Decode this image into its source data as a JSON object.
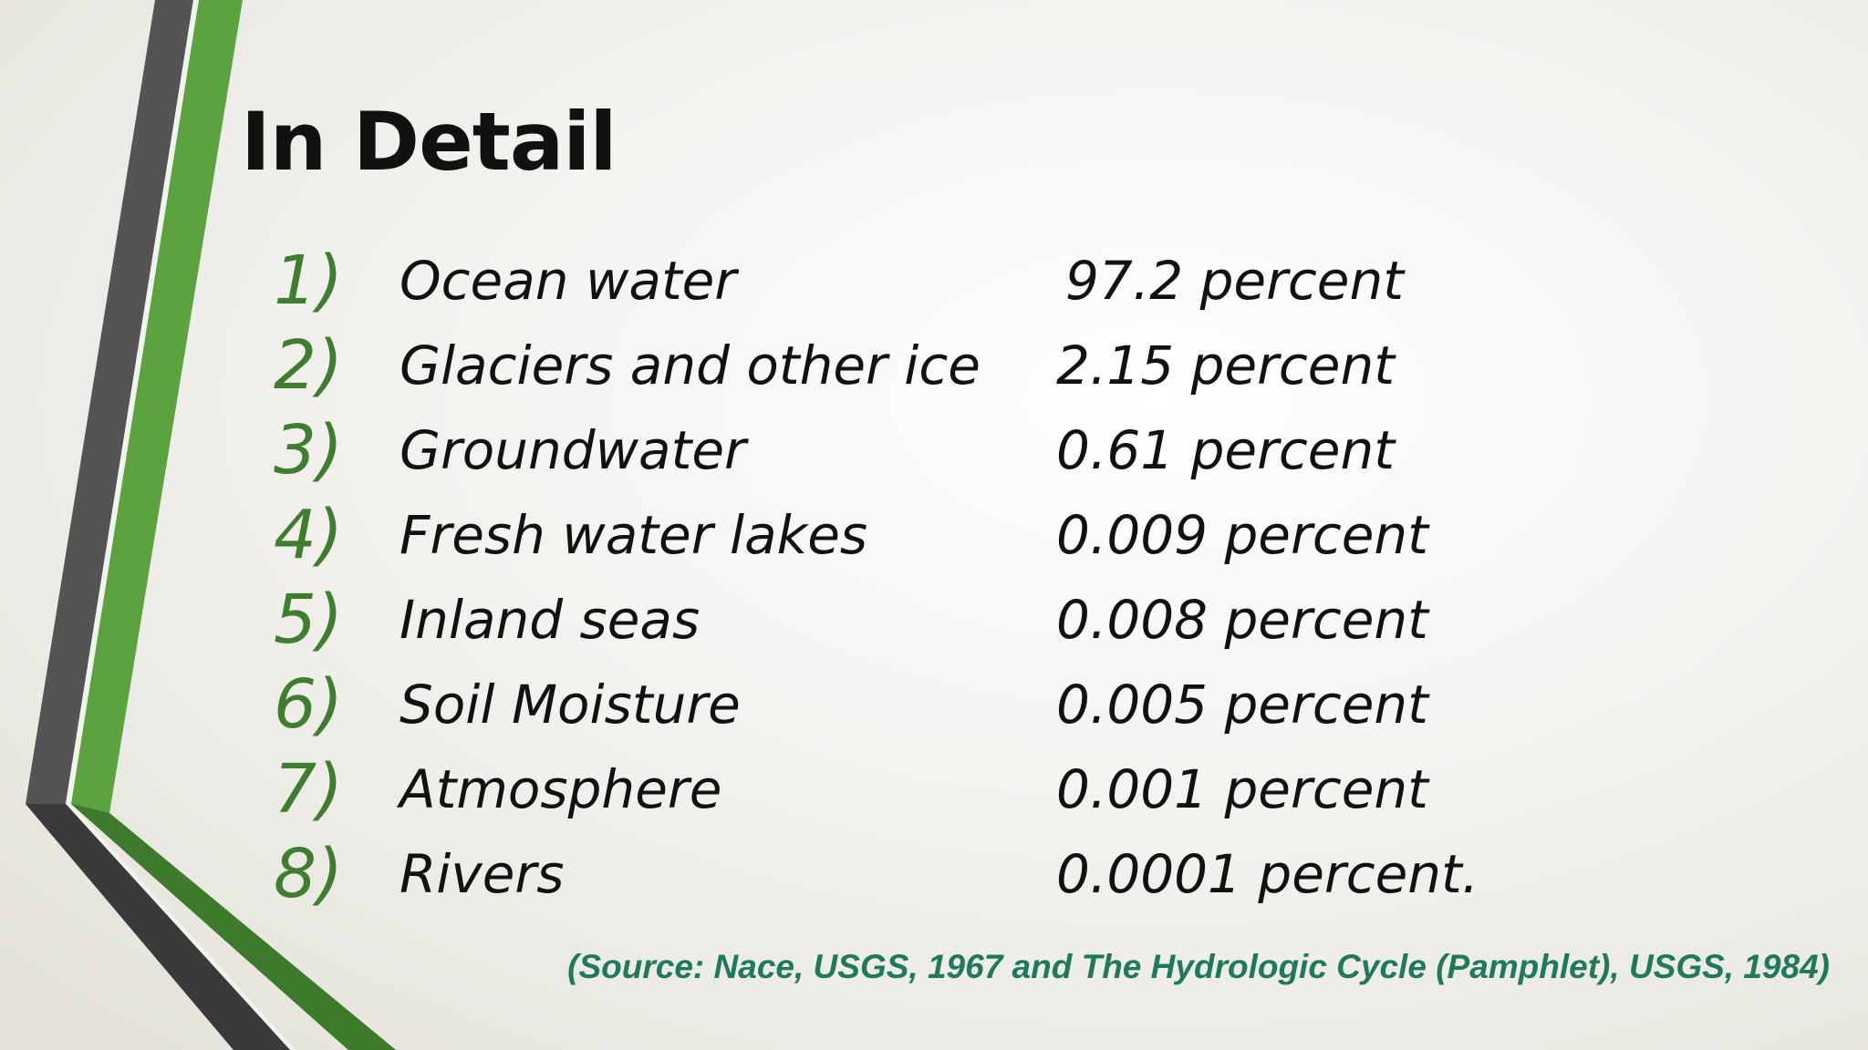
{
  "slide": {
    "title": "In Detail",
    "items": [
      {
        "number": "1)",
        "label": "Ocean water",
        "value": "97.2 percent"
      },
      {
        "number": "2)",
        "label": "Glaciers and other ice",
        "value": "2.15 percent"
      },
      {
        "number": "3)",
        "label": "Groundwater",
        "value": "0.61 percent"
      },
      {
        "number": "4)",
        "label": "Fresh water lakes",
        "value": "0.009 percent"
      },
      {
        "number": "5)",
        "label": "Inland seas",
        "value": "0.008 percent"
      },
      {
        "number": "6)",
        "label": "Soil Moisture",
        "value": "0.005 percent"
      },
      {
        "number": "7)",
        "label": "Atmosphere",
        "value": "0.001 percent"
      },
      {
        "number": "8)",
        "label": "Rivers",
        "value": "0.0001 percent."
      }
    ],
    "source": "(Source: Nace, USGS, 1967 and The Hydrologic Cycle (Pamphlet), USGS, 1984)"
  },
  "theme": {
    "accent_green": "#5aa33f",
    "dark_green": "#3f7d2f",
    "stripe_gray": "#505050",
    "source_color": "#1f7a5c"
  }
}
